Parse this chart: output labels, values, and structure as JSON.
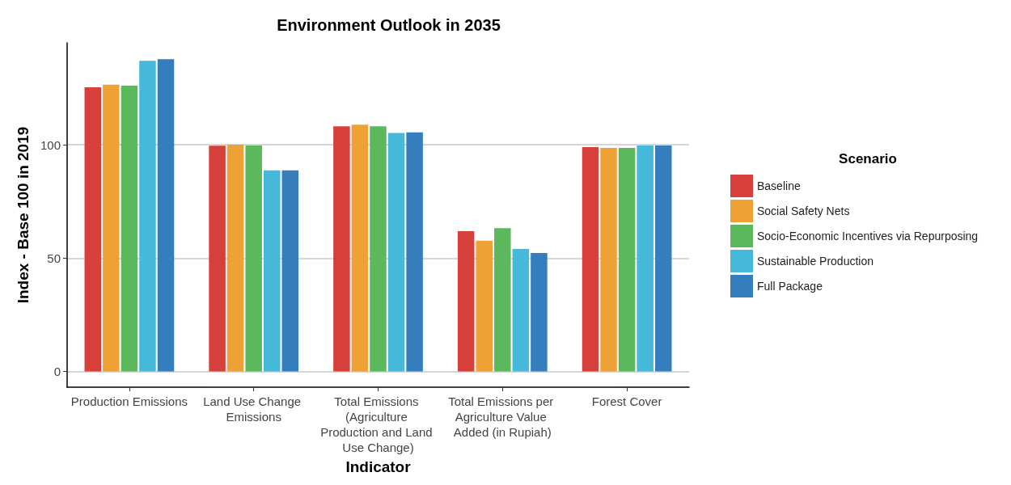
{
  "chart_data": {
    "type": "bar",
    "title": "Environment Outlook in 2035",
    "xlabel": "Indicator",
    "ylabel": "Index - Base 100 in 2019",
    "legend_title": "Scenario",
    "categories": [
      "Production Emissions",
      "Land Use Change Emissions",
      "Total Emissions (Agriculture Production and Land Use Change)",
      "Total Emissions per Agriculture Value Added (in Rupiah)",
      "Forest Cover"
    ],
    "series": [
      {
        "name": "Baseline",
        "color": "#d63f3a",
        "values": [
          125.4,
          99.6,
          108.2,
          61.9,
          99.0
        ]
      },
      {
        "name": "Social Safety Nets",
        "color": "#eea236",
        "values": [
          126.5,
          100.0,
          108.9,
          57.7,
          98.6
        ]
      },
      {
        "name": "Socio-Economic Incentives via Repurposing",
        "color": "#5cb85c",
        "values": [
          126.1,
          99.7,
          108.2,
          63.2,
          98.6
        ]
      },
      {
        "name": "Sustainable Production",
        "color": "#46b8da",
        "values": [
          137.1,
          88.7,
          105.2,
          54.0,
          99.7
        ]
      },
      {
        "name": "Full Package",
        "color": "#357ebd",
        "values": [
          137.8,
          88.7,
          105.5,
          52.2,
          99.7
        ]
      }
    ],
    "ylim": [
      -7,
      145
    ],
    "yticks": [
      0,
      50,
      100
    ],
    "grid": "y",
    "legend": "right"
  }
}
